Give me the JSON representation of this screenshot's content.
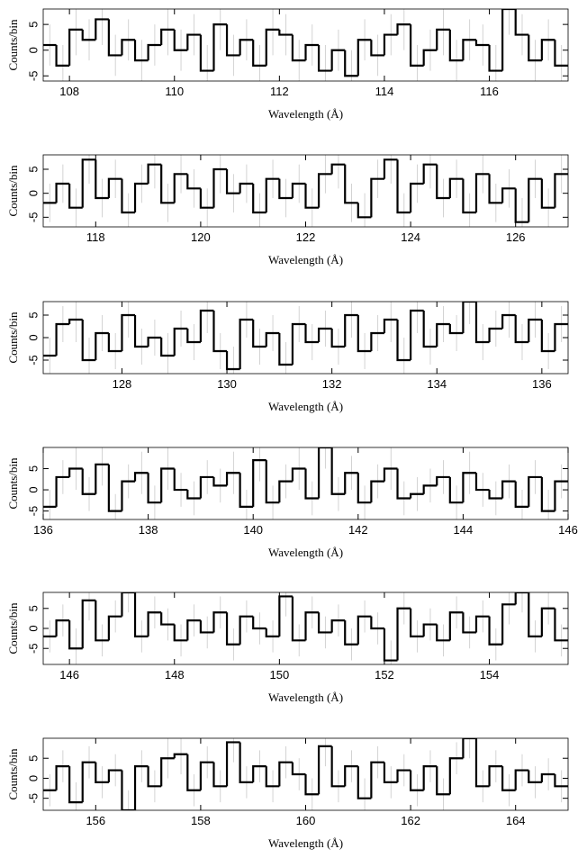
{
  "chart_data": [
    {
      "type": "histogram",
      "x_label": "Wavelength (Å)",
      "y_label": "Counts/bin",
      "xlim": [
        107.5,
        117.5
      ],
      "ylim": [
        -6,
        8
      ],
      "xticks": [
        108,
        110,
        112,
        114,
        116
      ],
      "yticks": [
        -5,
        0,
        5
      ],
      "bins": [
        107.5,
        107.75,
        108,
        108.25,
        108.5,
        108.75,
        109,
        109.25,
        109.5,
        109.75,
        110,
        110.25,
        110.5,
        110.75,
        111,
        111.25,
        111.5,
        111.75,
        112,
        112.25,
        112.5,
        112.75,
        113,
        113.25,
        113.5,
        113.75,
        114,
        114.25,
        114.5,
        114.75,
        115,
        115.25,
        115.5,
        115.75,
        116,
        116.25,
        116.5,
        116.75,
        117,
        117.25,
        117.5
      ],
      "values": [
        1,
        -3,
        4,
        2,
        6,
        -1,
        2,
        -2,
        1,
        4,
        0,
        3,
        -4,
        5,
        -1,
        2,
        -3,
        4,
        3,
        -2,
        1,
        -4,
        0,
        -5,
        2,
        -1,
        3,
        5,
        -3,
        0,
        4,
        -2,
        2,
        1,
        -4,
        8,
        3,
        -2,
        2,
        -3
      ],
      "errors": [
        4,
        4,
        5,
        4,
        5,
        4,
        4,
        4,
        4,
        5,
        4,
        4,
        5,
        5,
        4,
        4,
        4,
        5,
        4,
        4,
        4,
        5,
        4,
        5,
        4,
        4,
        4,
        5,
        4,
        4,
        5,
        4,
        4,
        4,
        5,
        5,
        4,
        4,
        4,
        4
      ]
    },
    {
      "type": "histogram",
      "x_label": "Wavelength (Å)",
      "y_label": "Counts/bin",
      "xlim": [
        117,
        127
      ],
      "ylim": [
        -7,
        8
      ],
      "xticks": [
        118,
        120,
        122,
        124,
        126
      ],
      "yticks": [
        -5,
        0,
        5
      ],
      "bins": [
        117,
        117.25,
        117.5,
        117.75,
        118,
        118.25,
        118.5,
        118.75,
        119,
        119.25,
        119.5,
        119.75,
        120,
        120.25,
        120.5,
        120.75,
        121,
        121.25,
        121.5,
        121.75,
        122,
        122.25,
        122.5,
        122.75,
        123,
        123.25,
        123.5,
        123.75,
        124,
        124.25,
        124.5,
        124.75,
        125,
        125.25,
        125.5,
        125.75,
        126,
        126.25,
        126.5,
        126.75,
        127
      ],
      "values": [
        -2,
        2,
        -3,
        7,
        -1,
        3,
        -4,
        2,
        6,
        -2,
        4,
        1,
        -3,
        5,
        0,
        2,
        -4,
        3,
        -1,
        2,
        -3,
        4,
        6,
        -2,
        -5,
        3,
        7,
        -4,
        2,
        6,
        -1,
        3,
        -4,
        4,
        -2,
        1,
        -6,
        3,
        -3,
        4
      ],
      "errors": [
        4,
        4,
        4,
        5,
        4,
        4,
        4,
        4,
        5,
        4,
        4,
        4,
        4,
        5,
        4,
        4,
        4,
        4,
        4,
        4,
        4,
        4,
        5,
        4,
        5,
        4,
        5,
        4,
        4,
        5,
        4,
        4,
        4,
        4,
        4,
        4,
        5,
        4,
        4,
        4
      ]
    },
    {
      "type": "histogram",
      "x_label": "Wavelength (Å)",
      "y_label": "Counts/bin",
      "xlim": [
        126.5,
        136.5
      ],
      "ylim": [
        -8,
        8
      ],
      "xticks": [
        128,
        130,
        132,
        134,
        136
      ],
      "yticks": [
        -5,
        0,
        5
      ],
      "bins": [
        126.5,
        126.75,
        127,
        127.25,
        127.5,
        127.75,
        128,
        128.25,
        128.5,
        128.75,
        129,
        129.25,
        129.5,
        129.75,
        130,
        130.25,
        130.5,
        130.75,
        131,
        131.25,
        131.5,
        131.75,
        132,
        132.25,
        132.5,
        132.75,
        133,
        133.25,
        133.5,
        133.75,
        134,
        134.25,
        134.5,
        134.75,
        135,
        135.25,
        135.5,
        135.75,
        136,
        136.25,
        136.5
      ],
      "values": [
        -4,
        3,
        4,
        -5,
        1,
        -3,
        5,
        -2,
        0,
        -4,
        2,
        -1,
        6,
        -3,
        -7,
        4,
        -2,
        1,
        -6,
        3,
        -1,
        2,
        -2,
        5,
        -3,
        1,
        4,
        -5,
        6,
        -2,
        3,
        1,
        8,
        -1,
        2,
        5,
        -1,
        4,
        -3,
        3
      ],
      "errors": [
        4,
        4,
        5,
        5,
        4,
        4,
        5,
        4,
        4,
        5,
        4,
        4,
        5,
        4,
        5,
        4,
        4,
        4,
        5,
        4,
        4,
        4,
        4,
        5,
        4,
        4,
        5,
        5,
        5,
        4,
        4,
        4,
        5,
        4,
        4,
        5,
        4,
        4,
        4,
        4
      ]
    },
    {
      "type": "histogram",
      "x_label": "Wavelength (Å)",
      "y_label": "Counts/bin",
      "xlim": [
        136,
        146
      ],
      "ylim": [
        -7,
        10
      ],
      "xticks": [
        136,
        138,
        140,
        142,
        144,
        146
      ],
      "yticks": [
        -5,
        0,
        5
      ],
      "bins": [
        136,
        136.25,
        136.5,
        136.75,
        137,
        137.25,
        137.5,
        137.75,
        138,
        138.25,
        138.5,
        138.75,
        139,
        139.25,
        139.5,
        139.75,
        140,
        140.25,
        140.5,
        140.75,
        141,
        141.25,
        141.5,
        141.75,
        142,
        142.25,
        142.5,
        142.75,
        143,
        143.25,
        143.5,
        143.75,
        144,
        144.25,
        144.5,
        144.75,
        145,
        145.25,
        145.5,
        145.75,
        146
      ],
      "values": [
        -4,
        3,
        5,
        -1,
        6,
        -5,
        2,
        4,
        -3,
        5,
        0,
        -2,
        3,
        1,
        4,
        -4,
        7,
        -3,
        2,
        5,
        -2,
        10,
        -1,
        4,
        -3,
        2,
        5,
        -2,
        -1,
        1,
        3,
        -3,
        4,
        0,
        -2,
        2,
        -4,
        3,
        -5,
        2
      ],
      "errors": [
        4,
        4,
        5,
        4,
        5,
        4,
        4,
        5,
        4,
        5,
        4,
        4,
        4,
        4,
        5,
        4,
        5,
        4,
        4,
        5,
        4,
        5,
        4,
        4,
        4,
        4,
        5,
        4,
        4,
        4,
        4,
        4,
        5,
        4,
        4,
        4,
        4,
        4,
        5,
        4
      ]
    },
    {
      "type": "histogram",
      "x_label": "Wavelength (Å)",
      "y_label": "Counts/bin",
      "xlim": [
        145.5,
        155.5
      ],
      "ylim": [
        -9,
        9
      ],
      "xticks": [
        146,
        148,
        150,
        152,
        154
      ],
      "yticks": [
        -5,
        0,
        5
      ],
      "bins": [
        145.5,
        145.75,
        146,
        146.25,
        146.5,
        146.75,
        147,
        147.25,
        147.5,
        147.75,
        148,
        148.25,
        148.5,
        148.75,
        149,
        149.25,
        149.5,
        149.75,
        150,
        150.25,
        150.5,
        150.75,
        151,
        151.25,
        151.5,
        151.75,
        152,
        152.25,
        152.5,
        152.75,
        153,
        153.25,
        153.5,
        153.75,
        154,
        154.25,
        154.5,
        154.75,
        155,
        155.25,
        155.5
      ],
      "values": [
        -2,
        2,
        -5,
        7,
        -3,
        3,
        9,
        -2,
        4,
        1,
        -3,
        2,
        -1,
        4,
        -4,
        3,
        0,
        -2,
        8,
        -3,
        4,
        -1,
        2,
        -4,
        3,
        0,
        -8,
        5,
        -2,
        1,
        -3,
        4,
        -1,
        3,
        -4,
        6,
        9,
        -2,
        5,
        -3
      ],
      "errors": [
        4,
        4,
        5,
        5,
        4,
        4,
        5,
        4,
        4,
        4,
        4,
        4,
        4,
        4,
        4,
        4,
        4,
        4,
        5,
        4,
        4,
        4,
        4,
        4,
        4,
        4,
        5,
        4,
        4,
        4,
        4,
        4,
        4,
        4,
        4,
        5,
        5,
        4,
        4,
        4
      ]
    },
    {
      "type": "histogram",
      "x_label": "Wavelength (Å)",
      "y_label": "Counts/bin",
      "xlim": [
        155,
        165
      ],
      "ylim": [
        -8,
        10
      ],
      "xticks": [
        156,
        158,
        160,
        162,
        164
      ],
      "yticks": [
        -5,
        0,
        5
      ],
      "bins": [
        155,
        155.25,
        155.5,
        155.75,
        156,
        156.25,
        156.5,
        156.75,
        157,
        157.25,
        157.5,
        157.75,
        158,
        158.25,
        158.5,
        158.75,
        159,
        159.25,
        159.5,
        159.75,
        160,
        160.25,
        160.5,
        160.75,
        161,
        161.25,
        161.5,
        161.75,
        162,
        162.25,
        162.5,
        162.75,
        163,
        163.25,
        163.5,
        163.75,
        164,
        164.25,
        164.5,
        164.75,
        165
      ],
      "values": [
        -3,
        3,
        -6,
        4,
        -1,
        2,
        -8,
        3,
        -2,
        5,
        6,
        -3,
        4,
        -2,
        9,
        -1,
        3,
        -2,
        4,
        1,
        -4,
        8,
        -2,
        3,
        -5,
        4,
        -1,
        2,
        -3,
        3,
        -4,
        5,
        10,
        -2,
        3,
        -3,
        2,
        -1,
        1,
        -2
      ],
      "errors": [
        4,
        4,
        5,
        4,
        4,
        4,
        5,
        4,
        4,
        5,
        5,
        4,
        4,
        4,
        5,
        4,
        4,
        4,
        4,
        4,
        4,
        5,
        4,
        4,
        5,
        4,
        4,
        4,
        4,
        4,
        4,
        4,
        5,
        4,
        4,
        4,
        4,
        4,
        4,
        4
      ]
    }
  ]
}
